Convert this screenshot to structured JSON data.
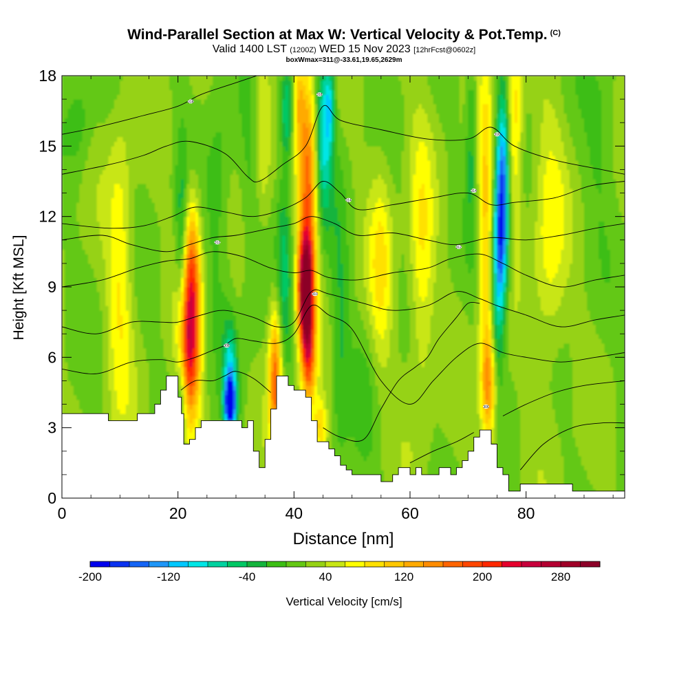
{
  "chart_data": {
    "type": "heatmap",
    "title": "Wind-Parallel Section at Max W: Vertical Velocity & Pot.Temp.",
    "title_mark": "(C)",
    "subtitle_main": "Valid 1400 LST",
    "subtitle_utc": "(1200Z)",
    "subtitle_date": "WED 15 Nov 2023",
    "subtitle_fcst": "[12hrFcst@0602z]",
    "subsubtitle": "boxWmax=311@-33.61,19.65,2629m",
    "xlabel": "Distance [nm]",
    "ylabel": "Height [Kft MSL]",
    "xlim": [
      0,
      97
    ],
    "ylim": [
      0,
      18
    ],
    "x_ticks": [
      0,
      20,
      40,
      60,
      80
    ],
    "x_tick_labels": [
      "0",
      "20",
      "40",
      "60",
      "80"
    ],
    "y_ticks": [
      0,
      3,
      6,
      9,
      12,
      15,
      18
    ],
    "y_tick_labels": [
      "0",
      "3",
      "6",
      "9",
      "12",
      "15",
      "18"
    ],
    "colorbar": {
      "label": "Vertical Velocity [cm/s]",
      "min": -200,
      "max": 320,
      "step": 20,
      "tick_values": [
        -200,
        -120,
        -40,
        40,
        120,
        200,
        280
      ],
      "tick_labels": [
        "-200",
        "-120",
        "-40",
        "40",
        "120",
        "200",
        "280"
      ],
      "colors": [
        "#0000ee",
        "#0a32f0",
        "#1464f5",
        "#1e96f8",
        "#00c8ff",
        "#00e6e6",
        "#00d2a0",
        "#00c864",
        "#14b43c",
        "#3cbe14",
        "#64c814",
        "#96d214",
        "#c8e614",
        "#ffff00",
        "#ffe100",
        "#ffc800",
        "#ffaa00",
        "#ff8c00",
        "#ff6400",
        "#ff4600",
        "#ff2800",
        "#e6002d",
        "#c8003c",
        "#b40032",
        "#a00028",
        "#8c0028"
      ]
    },
    "terrain": [
      [
        0,
        3.6
      ],
      [
        7,
        3.6
      ],
      [
        8,
        3.3
      ],
      [
        12,
        3.3
      ],
      [
        13,
        3.6
      ],
      [
        15,
        3.6
      ],
      [
        16,
        4.0
      ],
      [
        17,
        4.6
      ],
      [
        18,
        5.2
      ],
      [
        19,
        5.2
      ],
      [
        20,
        4.3
      ],
      [
        20.6,
        3.6
      ],
      [
        21,
        2.3
      ],
      [
        22,
        2.5
      ],
      [
        23,
        3.0
      ],
      [
        24,
        3.3
      ],
      [
        25,
        3.3
      ],
      [
        26,
        3.3
      ],
      [
        27,
        3.3
      ],
      [
        29,
        3.3
      ],
      [
        30,
        3.3
      ],
      [
        31,
        3.0
      ],
      [
        32,
        3.3
      ],
      [
        33,
        2.0
      ],
      [
        34,
        1.3
      ],
      [
        35,
        2.5
      ],
      [
        36,
        3.8
      ],
      [
        37,
        5.2
      ],
      [
        38,
        5.2
      ],
      [
        39,
        4.8
      ],
      [
        40,
        4.6
      ],
      [
        41,
        4.6
      ],
      [
        42,
        4.3
      ],
      [
        43,
        3.3
      ],
      [
        44,
        2.4
      ],
      [
        46,
        2.1
      ],
      [
        47,
        1.8
      ],
      [
        48,
        1.4
      ],
      [
        49,
        1.2
      ],
      [
        50,
        1.0
      ],
      [
        54,
        1.0
      ],
      [
        55,
        0.7
      ],
      [
        56,
        0.7
      ],
      [
        57,
        1.0
      ],
      [
        58,
        1.3
      ],
      [
        59,
        1.3
      ],
      [
        60,
        1.0
      ],
      [
        61,
        1.3
      ],
      [
        62,
        1.0
      ],
      [
        64,
        1.0
      ],
      [
        65,
        1.3
      ],
      [
        66,
        1.3
      ],
      [
        67,
        1.0
      ],
      [
        68,
        1.3
      ],
      [
        69,
        1.6
      ],
      [
        70,
        2.0
      ],
      [
        71,
        2.6
      ],
      [
        72,
        2.9
      ],
      [
        73,
        2.9
      ],
      [
        74,
        2.3
      ],
      [
        75,
        1.3
      ],
      [
        76,
        1.0
      ],
      [
        77,
        0.3
      ],
      [
        78,
        0.3
      ],
      [
        79,
        0.6
      ],
      [
        87,
        0.6
      ],
      [
        88,
        0.3
      ],
      [
        97,
        0.3
      ]
    ],
    "velocity_features": [
      {
        "x": 22.0,
        "y": 6.4,
        "sx": 1.3,
        "sy": 2.4,
        "w": 190
      },
      {
        "x": 20.6,
        "y": 4.3,
        "sx": 0.7,
        "sy": 1.2,
        "w": -60
      },
      {
        "x": 22.5,
        "y": 10.0,
        "sx": 1.0,
        "sy": 2.2,
        "w": 110
      },
      {
        "x": 20.6,
        "y": 10.5,
        "sx": 0.7,
        "sy": 3.0,
        "w": -60
      },
      {
        "x": 29.0,
        "y": 4.0,
        "sx": 0.7,
        "sy": 0.7,
        "w": -200
      },
      {
        "x": 29.0,
        "y": 5.2,
        "sx": 0.8,
        "sy": 1.5,
        "w": -110
      },
      {
        "x": 36.8,
        "y": 5.2,
        "sx": 0.8,
        "sy": 2.2,
        "w": 150
      },
      {
        "x": 38.3,
        "y": 10.0,
        "sx": 0.9,
        "sy": 3.2,
        "w": -60
      },
      {
        "x": 38.8,
        "y": 16.5,
        "sx": 0.8,
        "sy": 1.4,
        "w": -90
      },
      {
        "x": 40.8,
        "y": 17.0,
        "sx": 0.7,
        "sy": 1.4,
        "w": 70
      },
      {
        "x": 42.0,
        "y": 8.9,
        "sx": 0.9,
        "sy": 1.6,
        "w": 310
      },
      {
        "x": 42.5,
        "y": 13.5,
        "sx": 1.2,
        "sy": 3.4,
        "w": 150
      },
      {
        "x": 42.5,
        "y": 6.0,
        "sx": 0.9,
        "sy": 1.6,
        "w": 140
      },
      {
        "x": 45.0,
        "y": 15.5,
        "sx": 1.1,
        "sy": 2.5,
        "w": -110
      },
      {
        "x": 46.2,
        "y": 16.8,
        "sx": 0.6,
        "sy": 1.2,
        "w": -80
      },
      {
        "x": 44.5,
        "y": 3.0,
        "sx": 0.8,
        "sy": 0.8,
        "w": 80
      },
      {
        "x": 48.0,
        "y": 7.0,
        "sx": 1.1,
        "sy": 4.5,
        "w": -40
      },
      {
        "x": 73.5,
        "y": 4.8,
        "sx": 0.9,
        "sy": 1.8,
        "w": 130
      },
      {
        "x": 73.0,
        "y": 12.0,
        "sx": 0.9,
        "sy": 4.0,
        "w": 90
      },
      {
        "x": 75.6,
        "y": 11.0,
        "sx": 0.9,
        "sy": 2.2,
        "w": -170
      },
      {
        "x": 76.0,
        "y": 14.5,
        "sx": 0.8,
        "sy": 2.5,
        "w": -120
      },
      {
        "x": 75.0,
        "y": 7.5,
        "sx": 0.8,
        "sy": 1.8,
        "w": -60
      },
      {
        "x": 70.6,
        "y": 15.5,
        "sx": 0.7,
        "sy": 2.8,
        "w": -50
      },
      {
        "x": 78.0,
        "y": 16.0,
        "sx": 1.0,
        "sy": 3.0,
        "w": 80
      },
      {
        "x": 3.0,
        "y": 16.0,
        "sx": 1.5,
        "sy": 1.5,
        "w": -30
      },
      {
        "x": 10.0,
        "y": 9.5,
        "sx": 1.5,
        "sy": 4.5,
        "w": 60
      },
      {
        "x": 27.0,
        "y": 13.0,
        "sx": 1.5,
        "sy": 4.0,
        "w": -30
      },
      {
        "x": 33.0,
        "y": 12.0,
        "sx": 1.5,
        "sy": 3.5,
        "w": -30
      },
      {
        "x": 34.5,
        "y": 15.5,
        "sx": 1.0,
        "sy": 3.0,
        "w": 55
      },
      {
        "x": 52.0,
        "y": 4.0,
        "sx": 1.5,
        "sy": 2.0,
        "w": -20
      },
      {
        "x": 55.0,
        "y": 10.0,
        "sx": 1.4,
        "sy": 3.0,
        "w": 60
      },
      {
        "x": 62.0,
        "y": 10.0,
        "sx": 1.5,
        "sy": 4.0,
        "w": 60
      },
      {
        "x": 84.0,
        "y": 11.0,
        "sx": 2.0,
        "sy": 4.0,
        "w": 50
      },
      {
        "x": 93.0,
        "y": 16.0,
        "sx": 2.0,
        "sy": 2.5,
        "w": -30
      }
    ],
    "velocity_background": 20,
    "theta_contours": [
      {
        "points": [
          [
            0,
            15.5
          ],
          [
            6,
            15.8
          ],
          [
            14,
            16.3
          ],
          [
            20,
            16.7
          ],
          [
            24,
            17.2
          ],
          [
            30,
            17.7
          ],
          [
            36,
            18.2
          ]
        ]
      },
      {
        "points": [
          [
            0,
            13.8
          ],
          [
            8,
            14.2
          ],
          [
            14,
            14.6
          ],
          [
            18,
            15.0
          ],
          [
            22,
            15.2
          ],
          [
            28,
            14.7
          ],
          [
            32,
            13.7
          ],
          [
            34,
            13.5
          ],
          [
            38,
            14.2
          ],
          [
            42,
            15.0
          ],
          [
            45,
            16.7
          ],
          [
            48,
            16.1
          ],
          [
            55,
            15.7
          ],
          [
            63,
            15.3
          ],
          [
            70,
            15.3
          ],
          [
            74,
            15.8
          ],
          [
            78,
            15.0
          ],
          [
            85,
            14.4
          ],
          [
            93,
            14.0
          ],
          [
            97,
            13.8
          ]
        ]
      },
      {
        "points": [
          [
            0,
            11.7
          ],
          [
            8,
            11.5
          ],
          [
            14,
            11.6
          ],
          [
            19,
            12.0
          ],
          [
            23,
            12.4
          ],
          [
            28,
            12.2
          ],
          [
            33,
            12.0
          ],
          [
            38,
            12.3
          ],
          [
            42,
            12.8
          ],
          [
            45,
            13.5
          ],
          [
            48,
            13.0
          ],
          [
            51,
            12.3
          ],
          [
            57,
            12.5
          ],
          [
            64,
            12.8
          ],
          [
            70,
            13.0
          ],
          [
            74,
            12.5
          ],
          [
            78,
            12.6
          ],
          [
            85,
            12.8
          ],
          [
            91,
            13.3
          ],
          [
            97,
            13.5
          ]
        ]
      },
      {
        "points": [
          [
            0,
            11.0
          ],
          [
            7,
            11.2
          ],
          [
            12,
            10.8
          ],
          [
            18,
            10.5
          ],
          [
            22,
            10.8
          ],
          [
            26,
            11.1
          ],
          [
            30,
            11.2
          ],
          [
            36,
            11.5
          ],
          [
            40,
            11.7
          ],
          [
            43,
            12.0
          ],
          [
            47,
            11.7
          ],
          [
            51,
            11.2
          ],
          [
            57,
            11.3
          ],
          [
            63,
            11.0
          ],
          [
            68,
            10.8
          ],
          [
            74,
            11.1
          ],
          [
            80,
            11.0
          ],
          [
            86,
            11.2
          ],
          [
            92,
            11.5
          ],
          [
            97,
            11.7
          ]
        ]
      },
      {
        "points": [
          [
            0,
            9.0
          ],
          [
            7,
            9.3
          ],
          [
            13,
            9.8
          ],
          [
            18,
            10.1
          ],
          [
            22,
            10.2
          ],
          [
            26,
            10.5
          ],
          [
            31,
            10.3
          ],
          [
            36,
            9.8
          ],
          [
            40,
            9.6
          ],
          [
            43,
            9.7
          ],
          [
            46,
            9.4
          ],
          [
            51,
            9.3
          ],
          [
            57,
            9.6
          ],
          [
            63,
            9.8
          ],
          [
            67,
            10.2
          ],
          [
            72,
            10.4
          ],
          [
            76,
            10.0
          ],
          [
            80,
            9.5
          ],
          [
            86,
            9.0
          ],
          [
            92,
            9.3
          ],
          [
            97,
            9.5
          ]
        ]
      },
      {
        "points": [
          [
            0,
            7.3
          ],
          [
            6,
            7.0
          ],
          [
            12,
            7.5
          ],
          [
            17,
            7.5
          ],
          [
            20,
            7.5
          ],
          [
            24,
            7.8
          ],
          [
            28,
            8.0
          ],
          [
            33,
            7.7
          ],
          [
            37,
            7.3
          ],
          [
            40,
            7.5
          ],
          [
            43,
            8.8
          ],
          [
            46,
            8.7
          ],
          [
            52,
            8.3
          ],
          [
            57,
            8.0
          ],
          [
            63,
            8.2
          ],
          [
            68,
            8.8
          ],
          [
            72,
            8.5
          ],
          [
            75,
            8.2
          ],
          [
            80,
            7.8
          ],
          [
            86,
            7.3
          ],
          [
            92,
            7.6
          ],
          [
            97,
            7.8
          ]
        ]
      },
      {
        "points": [
          [
            0,
            5.5
          ],
          [
            6,
            5.3
          ],
          [
            12,
            5.8
          ],
          [
            17,
            5.9
          ],
          [
            20,
            5.8
          ],
          [
            23,
            6.0
          ],
          [
            26,
            6.3
          ],
          [
            28,
            6.5
          ],
          [
            30,
            6.8
          ],
          [
            33,
            6.7
          ],
          [
            37,
            6.6
          ],
          [
            40,
            7.0
          ],
          [
            43,
            8.2
          ],
          [
            46,
            7.8
          ],
          [
            50,
            7.2
          ],
          [
            55,
            5.0
          ],
          [
            60,
            4.0
          ],
          [
            64,
            5.0
          ],
          [
            68,
            6.0
          ],
          [
            72,
            6.6
          ],
          [
            76,
            6.2
          ],
          [
            80,
            6.0
          ],
          [
            86,
            5.8
          ],
          [
            92,
            6.0
          ],
          [
            97,
            6.2
          ]
        ]
      },
      {
        "points": [
          [
            20.5,
            4.6
          ],
          [
            23,
            5.0
          ],
          [
            26,
            5.0
          ],
          [
            28,
            5.2
          ],
          [
            30,
            5.4
          ],
          [
            33,
            5.1
          ],
          [
            36,
            4.5
          ]
        ]
      },
      {
        "points": [
          [
            45,
            3.0
          ],
          [
            48,
            2.6
          ],
          [
            52,
            2.5
          ],
          [
            55,
            3.8
          ],
          [
            58,
            5.0
          ],
          [
            61,
            5.6
          ],
          [
            63,
            6.0
          ],
          [
            65,
            6.8
          ],
          [
            68,
            7.7
          ],
          [
            70,
            8.3
          ],
          [
            72,
            8.3
          ]
        ]
      },
      {
        "points": [
          [
            76,
            3.5
          ],
          [
            80,
            4.0
          ],
          [
            85,
            4.5
          ],
          [
            90,
            4.8
          ],
          [
            97,
            5.0
          ]
        ]
      },
      {
        "points": [
          [
            60,
            1.5
          ],
          [
            64,
            2.0
          ],
          [
            68,
            2.4
          ],
          [
            71,
            2.8
          ]
        ]
      },
      {
        "points": [
          [
            79,
            1.2
          ],
          [
            83,
            2.3
          ],
          [
            88,
            3.0
          ],
          [
            93,
            3.2
          ],
          [
            97,
            3.2
          ]
        ]
      }
    ],
    "theta_labels": [
      {
        "x": 22.2,
        "y": 16.9,
        "text": "318"
      },
      {
        "x": 44.4,
        "y": 17.2,
        "text": "318"
      },
      {
        "x": 75.0,
        "y": 15.5,
        "text": "316"
      },
      {
        "x": 49.4,
        "y": 12.7,
        "text": "314"
      },
      {
        "x": 71.0,
        "y": 13.1,
        "text": "314"
      },
      {
        "x": 26.8,
        "y": 10.9,
        "text": "312"
      },
      {
        "x": 68.4,
        "y": 10.7,
        "text": "312"
      },
      {
        "x": 43.6,
        "y": 8.7,
        "text": "310"
      },
      {
        "x": 28.4,
        "y": 6.5,
        "text": "308"
      },
      {
        "x": 73.1,
        "y": 3.9,
        "text": "306"
      }
    ]
  }
}
